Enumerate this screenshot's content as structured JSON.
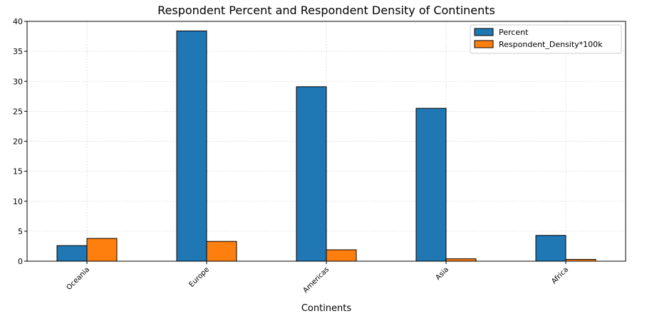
{
  "chart_data": {
    "type": "bar",
    "title": "Respondent Percent and Respondent Density of Continents",
    "xlabel": "Continents",
    "ylabel": "",
    "categories": [
      "Oceania",
      "Europe",
      "Americas",
      "Asia",
      "Africa"
    ],
    "series": [
      {
        "name": "Percent",
        "values": [
          2.6,
          38.4,
          29.1,
          25.5,
          4.3
        ],
        "color": "#1f77b4"
      },
      {
        "name": "Respondent_Density*100k",
        "values": [
          3.8,
          3.3,
          1.9,
          0.4,
          0.3
        ],
        "color": "#ff7f0e"
      }
    ],
    "ylim": [
      0,
      40
    ],
    "yticks": [
      0,
      5,
      10,
      15,
      20,
      25,
      30,
      35,
      40
    ],
    "grid": true,
    "legend_position": "top-right",
    "xtick_rotation": 45
  }
}
